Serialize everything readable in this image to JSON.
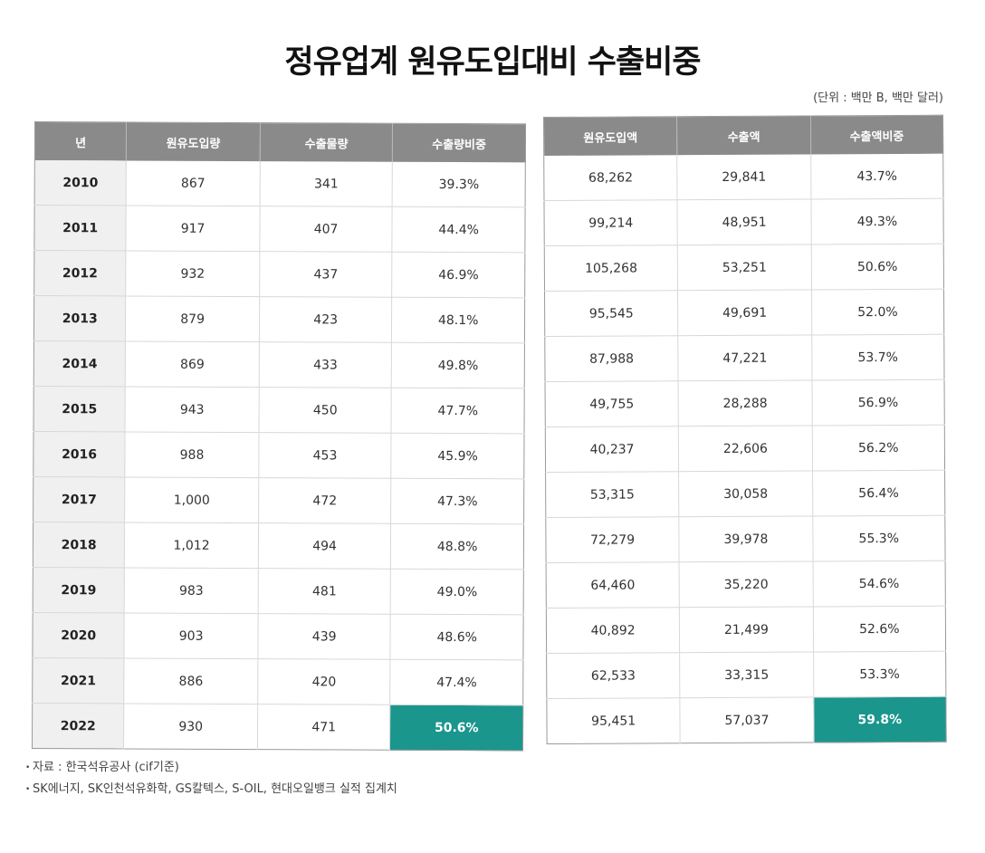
{
  "title": "정유업계 원유도입대비 수출비중",
  "unit": "(단위 : 백만 B, 백만 달러)",
  "left_table": {
    "headers": [
      "년",
      "원유도입량",
      "수출물량",
      "수출량비중"
    ],
    "rows": [
      [
        "2010",
        "867",
        "341",
        "39.3%"
      ],
      [
        "2011",
        "917",
        "407",
        "44.4%"
      ],
      [
        "2012",
        "932",
        "437",
        "46.9%"
      ],
      [
        "2013",
        "879",
        "423",
        "48.1%"
      ],
      [
        "2014",
        "869",
        "433",
        "49.8%"
      ],
      [
        "2015",
        "943",
        "450",
        "47.7%"
      ],
      [
        "2016",
        "988",
        "453",
        "45.9%"
      ],
      [
        "2017",
        "1,000",
        "472",
        "47.3%"
      ],
      [
        "2018",
        "1,012",
        "494",
        "48.8%"
      ],
      [
        "2019",
        "983",
        "481",
        "49.0%"
      ],
      [
        "2020",
        "903",
        "439",
        "48.6%"
      ],
      [
        "2021",
        "886",
        "420",
        "47.4%"
      ],
      [
        "2022",
        "930",
        "471",
        "50.6%"
      ]
    ]
  },
  "right_table": {
    "headers": [
      "원유도입액",
      "수출액",
      "수출액비중"
    ],
    "rows": [
      [
        "68,262",
        "29,841",
        "43.7%"
      ],
      [
        "99,214",
        "48,951",
        "49.3%"
      ],
      [
        "105,268",
        "53,251",
        "50.6%"
      ],
      [
        "95,545",
        "49,691",
        "52.0%"
      ],
      [
        "87,988",
        "47,221",
        "53.7%"
      ],
      [
        "49,755",
        "28,288",
        "56.9%"
      ],
      [
        "40,237",
        "22,606",
        "56.2%"
      ],
      [
        "53,315",
        "30,058",
        "56.4%"
      ],
      [
        "72,279",
        "39,978",
        "55.3%"
      ],
      [
        "64,460",
        "35,220",
        "54.6%"
      ],
      [
        "40,892",
        "21,499",
        "52.6%"
      ],
      [
        "62,533",
        "33,315",
        "53.3%"
      ],
      [
        "95,451",
        "57,037",
        "59.8%"
      ]
    ]
  },
  "highlight_color": "#1a968c",
  "header_color": "#8a8a8a",
  "notes": [
    "자료 : 한국석유공사 (cif기준)",
    "SK에너지, SK인천석유화학, GS칼텍스, S-OIL, 현대오일뱅크 실적 집계치"
  ],
  "note_bullet": "•"
}
